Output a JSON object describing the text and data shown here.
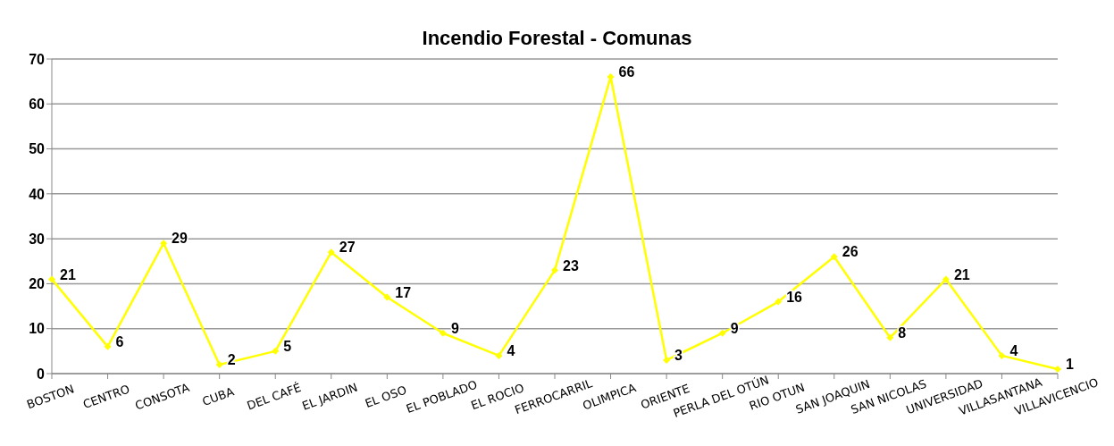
{
  "chart_data": {
    "type": "line",
    "title": "Incendio Forestal - Comunas",
    "categories": [
      "BOSTON",
      "CENTRO",
      "CONSOTA",
      "CUBA",
      "DEL CAFÉ",
      "EL JARDIN",
      "EL OSO",
      "EL POBLADO",
      "EL ROCIO",
      "FERROCARRIL",
      "OLIMPICA",
      "ORIENTE",
      "PERLA DEL OTÚN",
      "RIO OTUN",
      "SAN JOAQUIN",
      "SAN NICOLAS",
      "UNIVERSIDAD",
      "VILLASANTANA",
      "VILLAVICENCIO"
    ],
    "values": [
      21,
      6,
      29,
      2,
      5,
      27,
      17,
      9,
      4,
      23,
      66,
      3,
      9,
      16,
      26,
      8,
      21,
      4,
      1
    ],
    "color": "#ffff00",
    "ylim": [
      0,
      70
    ],
    "yticks": [
      0,
      10,
      20,
      30,
      40,
      50,
      60,
      70
    ],
    "grid": "y",
    "marker": "diamond",
    "line_style": "solid",
    "data_labels": true
  }
}
